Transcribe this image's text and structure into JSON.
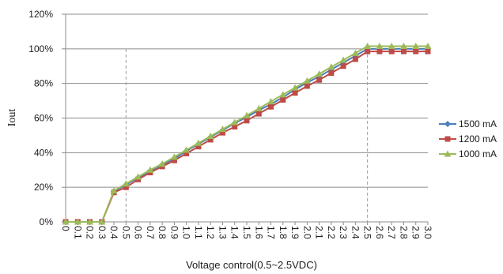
{
  "chart_data": {
    "type": "line",
    "title": "",
    "xlabel": "Voltage control(0.5~2.5VDC)",
    "ylabel": "Iout",
    "ylim": [
      0,
      120
    ],
    "yticks": [
      0,
      20,
      40,
      60,
      80,
      100,
      120
    ],
    "ytick_labels": [
      "0%",
      "20%",
      "40%",
      "60%",
      "80%",
      "100%",
      "120%"
    ],
    "x": [
      0,
      0.1,
      0.2,
      0.3,
      0.4,
      0.5,
      0.6,
      0.7,
      0.8,
      0.9,
      1.0,
      1.1,
      1.2,
      1.3,
      1.4,
      1.5,
      1.6,
      1.7,
      1.8,
      1.9,
      2.0,
      2.1,
      2.2,
      2.3,
      2.4,
      2.5,
      2.6,
      2.7,
      2.8,
      2.9,
      3.0
    ],
    "x_labels": [
      "0",
      "0.1",
      "0.2",
      "0.3",
      "0.4",
      "0.5",
      "0.6",
      "0.7",
      "0.8",
      "0.9",
      "1.0",
      "1.1",
      "1.2",
      "1.3",
      "1.4",
      "1.5",
      "1.6",
      "1.7",
      "1.8",
      "1.9",
      "2.0",
      "2.1",
      "2.2",
      "2.3",
      "2.4",
      "2.5",
      "2.6",
      "2.7",
      "2.8",
      "2.9",
      "3.0"
    ],
    "reference_lines_x": [
      0.5,
      2.5
    ],
    "grid": "horizontal",
    "legend_position": "right",
    "series": [
      {
        "name": "1500 mA",
        "color": "#4a7ebb",
        "marker": "diamond",
        "values": [
          0,
          0,
          0,
          0,
          17.5,
          21.5,
          25.5,
          29.5,
          33,
          36.5,
          41,
          45,
          49,
          53,
          57,
          60.5,
          64.5,
          68,
          72,
          76.5,
          80.5,
          84,
          88,
          92,
          96,
          100,
          100,
          100,
          100,
          100,
          100
        ]
      },
      {
        "name": "1200 mA",
        "color": "#be4b48",
        "marker": "square",
        "values": [
          0,
          0,
          0,
          0,
          17,
          20,
          24.5,
          28.5,
          32,
          35.5,
          39.5,
          43.5,
          47.5,
          51.5,
          55,
          58.5,
          62.5,
          66.5,
          70.5,
          74.5,
          78.5,
          82,
          86,
          90,
          94,
          98.5,
          98.5,
          98.5,
          98.5,
          98.5,
          98.5
        ]
      },
      {
        "name": "1000 mA",
        "color": "#9bbb59",
        "marker": "triangle",
        "values": [
          0,
          0,
          0,
          0,
          18,
          22,
          26,
          30,
          33.5,
          37.5,
          41.5,
          45.5,
          49.5,
          53.5,
          57.5,
          61.5,
          65.5,
          69.5,
          73.5,
          77.5,
          81.5,
          85.5,
          89.5,
          93.5,
          97.5,
          101.5,
          101.5,
          101.5,
          101.5,
          101.5,
          101.5
        ]
      }
    ]
  }
}
